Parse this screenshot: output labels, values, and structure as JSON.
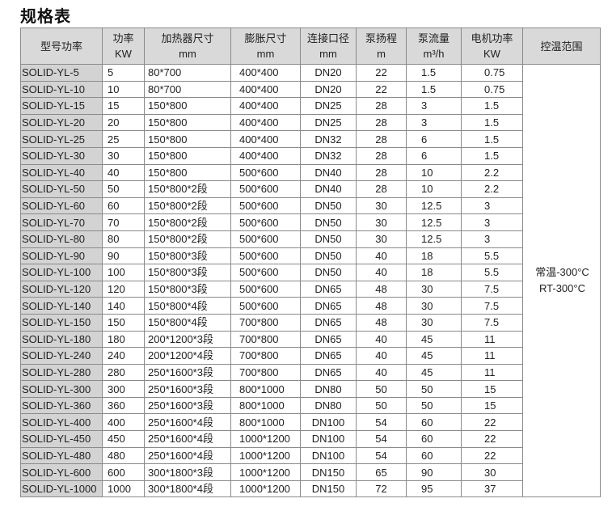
{
  "title": "规格表",
  "headers": [
    {
      "line1": "型号功率",
      "line2": ""
    },
    {
      "line1": "功率",
      "line2": "KW"
    },
    {
      "line1": "加热器尺寸",
      "line2": "mm"
    },
    {
      "line1": "膨胀尺寸",
      "line2": "mm"
    },
    {
      "line1": "连接口径",
      "line2": "mm"
    },
    {
      "line1": "泵扬程",
      "line2": "m"
    },
    {
      "line1": "泵流量",
      "line2": "m³/h"
    },
    {
      "line1": "电机功率",
      "line2": "KW"
    },
    {
      "line1": "控温范围",
      "line2": ""
    }
  ],
  "temperature_range": {
    "line1": "常温-300°C",
    "line2": "RT-300°C"
  },
  "rows": [
    [
      "SOLID-YL-5",
      "5",
      "80*700",
      "400*400",
      "DN20",
      "22",
      "1.5",
      "0.75"
    ],
    [
      "SOLID-YL-10",
      "10",
      "80*700",
      "400*400",
      "DN20",
      "22",
      "1.5",
      "0.75"
    ],
    [
      "SOLID-YL-15",
      "15",
      "150*800",
      "400*400",
      "DN25",
      "28",
      "3",
      "1.5"
    ],
    [
      "SOLID-YL-20",
      "20",
      "150*800",
      "400*400",
      "DN25",
      "28",
      "3",
      "1.5"
    ],
    [
      "SOLID-YL-25",
      "25",
      "150*800",
      "400*400",
      "DN32",
      "28",
      "6",
      "1.5"
    ],
    [
      "SOLID-YL-30",
      "30",
      "150*800",
      "400*400",
      "DN32",
      "28",
      "6",
      "1.5"
    ],
    [
      "SOLID-YL-40",
      "40",
      "150*800",
      "500*600",
      "DN40",
      "28",
      "10",
      "2.2"
    ],
    [
      "SOLID-YL-50",
      "50",
      "150*800*2段",
      "500*600",
      "DN40",
      "28",
      "10",
      "2.2"
    ],
    [
      "SOLID-YL-60",
      "60",
      "150*800*2段",
      "500*600",
      "DN50",
      "30",
      "12.5",
      "3"
    ],
    [
      "SOLID-YL-70",
      "70",
      "150*800*2段",
      "500*600",
      "DN50",
      "30",
      "12.5",
      "3"
    ],
    [
      "SOLID-YL-80",
      "80",
      "150*800*2段",
      "500*600",
      "DN50",
      "30",
      "12.5",
      "3"
    ],
    [
      "SOLID-YL-90",
      "90",
      "150*800*3段",
      "500*600",
      "DN50",
      "40",
      "18",
      "5.5"
    ],
    [
      "SOLID-YL-100",
      "100",
      "150*800*3段",
      "500*600",
      "DN50",
      "40",
      "18",
      "5.5"
    ],
    [
      "SOLID-YL-120",
      "120",
      "150*800*3段",
      "500*600",
      "DN65",
      "48",
      "30",
      "7.5"
    ],
    [
      "SOLID-YL-140",
      "140",
      "150*800*4段",
      "500*600",
      "DN65",
      "48",
      "30",
      "7.5"
    ],
    [
      "SOLID-YL-150",
      "150",
      "150*800*4段",
      "700*800",
      "DN65",
      "48",
      "30",
      "7.5"
    ],
    [
      "SOLID-YL-180",
      "180",
      "200*1200*3段",
      "700*800",
      "DN65",
      "40",
      "45",
      "11"
    ],
    [
      "SOLID-YL-240",
      "240",
      "200*1200*4段",
      "700*800",
      "DN65",
      "40",
      "45",
      "11"
    ],
    [
      "SOLID-YL-280",
      "280",
      "250*1600*3段",
      "700*800",
      "DN65",
      "40",
      "45",
      "11"
    ],
    [
      "SOLID-YL-300",
      "300",
      "250*1600*3段",
      "800*1000",
      "DN80",
      "50",
      "50",
      "15"
    ],
    [
      "SOLID-YL-360",
      "360",
      "250*1600*3段",
      "800*1000",
      "DN80",
      "50",
      "50",
      "15"
    ],
    [
      "SOLID-YL-400",
      "400",
      "250*1600*4段",
      "800*1000",
      "DN100",
      "54",
      "60",
      "22"
    ],
    [
      "SOLID-YL-450",
      "450",
      "250*1600*4段",
      "1000*1200",
      "DN100",
      "54",
      "60",
      "22"
    ],
    [
      "SOLID-YL-480",
      "480",
      "250*1600*4段",
      "1000*1200",
      "DN100",
      "54",
      "60",
      "22"
    ],
    [
      "SOLID-YL-600",
      "600",
      "300*1800*3段",
      "1000*1200",
      "DN150",
      "65",
      "90",
      "30"
    ],
    [
      "SOLID-YL-1000",
      "1000",
      "300*1800*4段",
      "1000*1200",
      "DN150",
      "72",
      "95",
      "37"
    ]
  ]
}
